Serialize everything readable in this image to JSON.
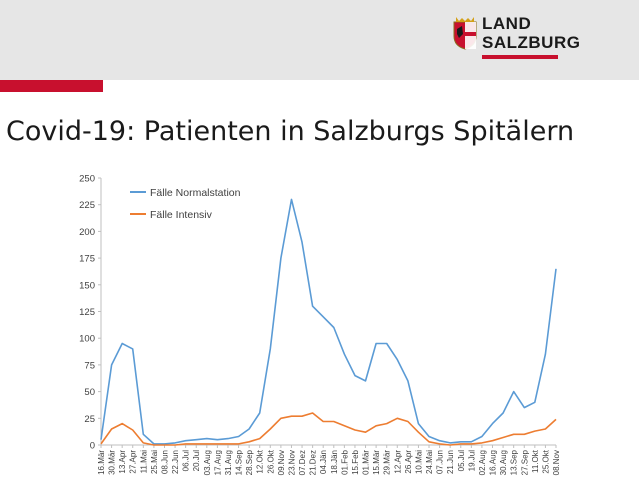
{
  "header": {
    "logo_line1": "LAND",
    "logo_line2": "SALZBURG",
    "colors": {
      "band": "#e6e6e6",
      "accent": "#c8102e"
    }
  },
  "page_title": "Covid-19: Patienten in Salzburgs Spitälern",
  "chart_data": {
    "type": "line",
    "title": "",
    "xlabel": "",
    "ylabel": "",
    "ylim": [
      0,
      250
    ],
    "yticks": [
      0,
      25,
      50,
      75,
      100,
      125,
      150,
      175,
      200,
      225,
      250
    ],
    "grid": false,
    "legend": "top-left",
    "categories": [
      "16.Mär",
      "30.Mär",
      "13.Apr",
      "27.Apr",
      "11.Mai",
      "25.Mai",
      "08.Jun",
      "22.Jun",
      "06.Jul",
      "20.Jul",
      "03.Aug",
      "17.Aug",
      "31.Aug",
      "14.Sep",
      "28.Sep",
      "12.Okt",
      "26.Okt",
      "09.Nov",
      "23.Nov",
      "07.Dez",
      "21.Dez",
      "04.Jän",
      "18.Jän",
      "01.Feb",
      "15.Feb",
      "01.Mär",
      "15.Mär",
      "29.Mär",
      "12.Apr",
      "26.Apr",
      "10.Mai",
      "24.Mai",
      "07.Jun",
      "21.Jun",
      "05.Jul",
      "19.Jul",
      "02.Aug",
      "16.Aug",
      "30.Aug",
      "13.Sep",
      "27.Sep",
      "11.Okt",
      "25.Okt",
      "08.Nov"
    ],
    "series": [
      {
        "name": "Fälle Normalstation",
        "color": "#5b9bd5",
        "values": [
          5,
          75,
          95,
          90,
          10,
          1,
          1,
          2,
          4,
          5,
          6,
          5,
          6,
          8,
          15,
          30,
          90,
          175,
          230,
          190,
          130,
          120,
          110,
          85,
          65,
          60,
          95,
          95,
          80,
          60,
          20,
          8,
          4,
          2,
          3,
          3,
          8,
          20,
          30,
          50,
          35,
          40,
          85,
          165
        ]
      },
      {
        "name": "Fälle Intensiv",
        "color": "#ed7d31",
        "values": [
          1,
          15,
          20,
          14,
          2,
          0,
          0,
          0,
          1,
          1,
          1,
          1,
          1,
          1,
          3,
          6,
          15,
          25,
          27,
          27,
          30,
          22,
          22,
          18,
          14,
          12,
          18,
          20,
          25,
          22,
          12,
          3,
          1,
          0,
          1,
          1,
          2,
          4,
          7,
          10,
          10,
          13,
          15,
          24
        ]
      }
    ]
  }
}
